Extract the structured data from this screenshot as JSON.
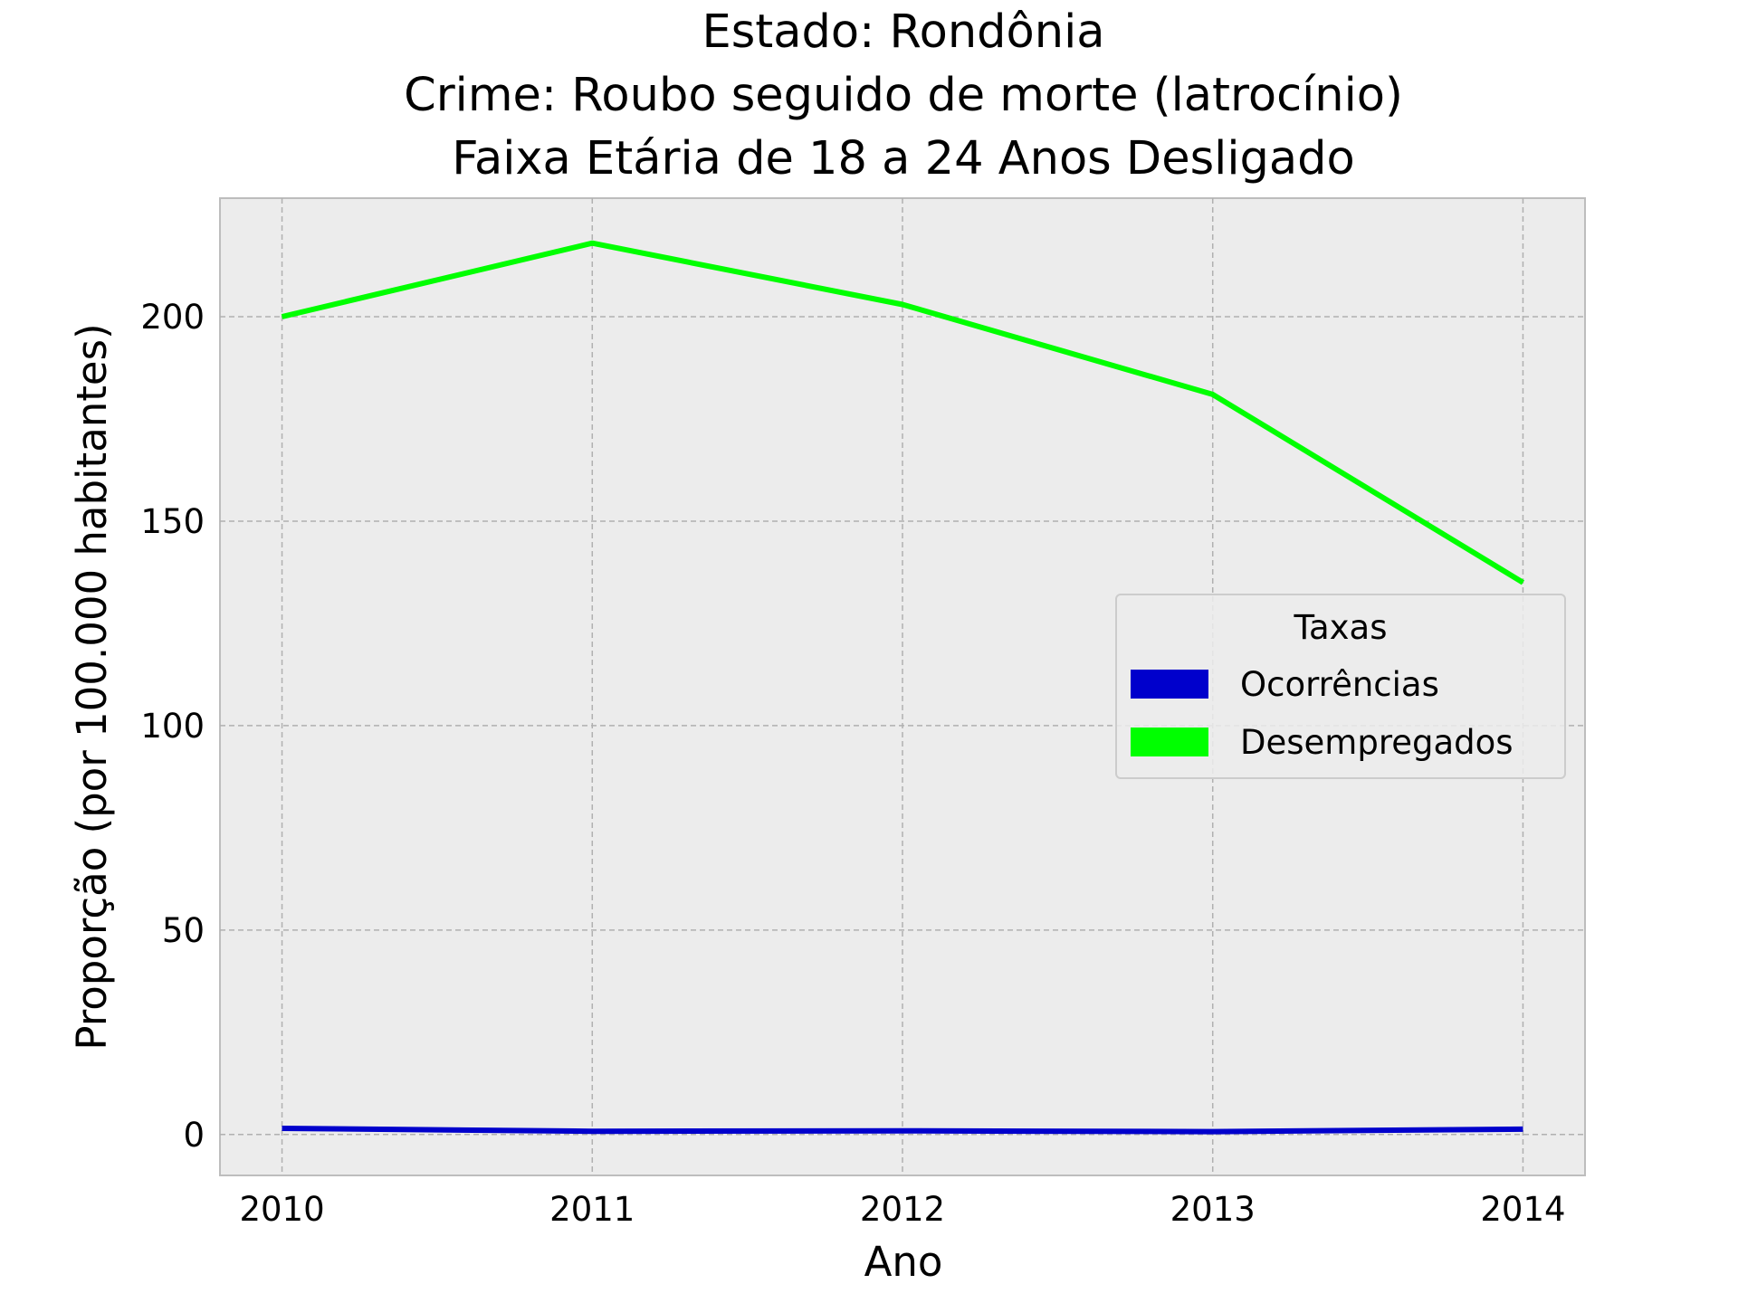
{
  "chart_data": {
    "type": "line",
    "title_lines": [
      "Estado: Rondônia",
      "Crime: Roubo seguido de morte (latrocínio)",
      "Faixa Etária de 18 a 24 Anos   Desligado"
    ],
    "xlabel": "Ano",
    "ylabel": "Proporção (por 100.000 habitantes)",
    "x": [
      2010,
      2011,
      2012,
      2013,
      2014
    ],
    "x_tick_labels": [
      "2010",
      "2011",
      "2012",
      "2013",
      "2014"
    ],
    "y_ticks": [
      0,
      50,
      100,
      150,
      200
    ],
    "y_tick_labels": [
      "0",
      "50",
      "100",
      "150",
      "200"
    ],
    "xlim": [
      2009.8,
      2014.2
    ],
    "ylim": [
      -10,
      229
    ],
    "grid": true,
    "legend_placement": "center-right",
    "legend_title": "Taxas",
    "series": [
      {
        "name": "Ocorrências",
        "color": "#0000cc",
        "values": [
          1.5,
          0.8,
          0.9,
          0.7,
          1.3
        ]
      },
      {
        "name": "Desempregados",
        "color": "#00ff00",
        "values": [
          200,
          218,
          203,
          181,
          135
        ]
      }
    ],
    "background_color": "#ececec",
    "grid_color": "#b0b0b0"
  }
}
